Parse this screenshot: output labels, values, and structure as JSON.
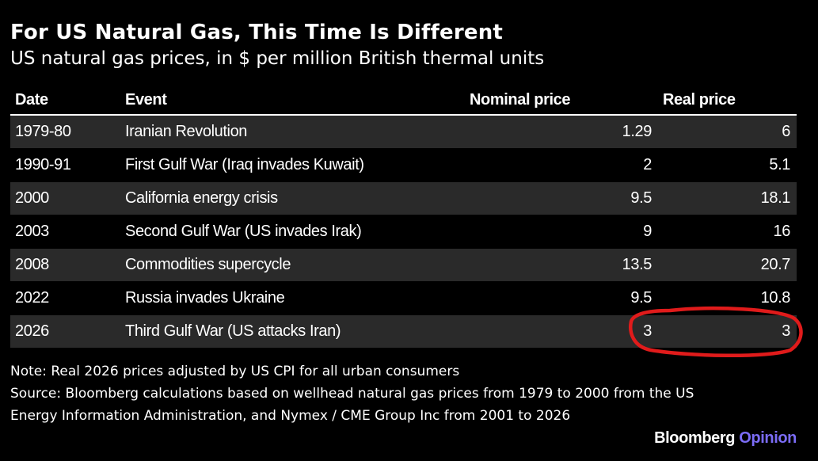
{
  "chart_data": {
    "type": "table",
    "title": "For US Natural Gas, This Time Is Different",
    "subtitle": "US natural gas prices, in $ per million British thermal units",
    "columns": [
      "Date",
      "Event",
      "Nominal price",
      "Real price"
    ],
    "rows": [
      {
        "date": "1979-80",
        "event": "Iranian Revolution",
        "nominal": "1.29",
        "real": "6"
      },
      {
        "date": "1990-91",
        "event": "First Gulf War (Iraq invades Kuwait)",
        "nominal": "2",
        "real": "5.1"
      },
      {
        "date": "2000",
        "event": "California energy crisis",
        "nominal": "9.5",
        "real": "18.1"
      },
      {
        "date": "2003",
        "event": "Second Gulf War (US invades Irak)",
        "nominal": "9",
        "real": "16"
      },
      {
        "date": "2008",
        "event": "Commodities supercycle",
        "nominal": "13.5",
        "real": "20.7"
      },
      {
        "date": "2022",
        "event": "Russia invades Ukraine",
        "nominal": "9.5",
        "real": "10.8"
      },
      {
        "date": "2026",
        "event": "Third Gulf War (US attacks Iran)",
        "nominal": "3",
        "real": "3"
      }
    ],
    "note": "Note: Real 2026 prices adjusted by US CPI for all urban consumers",
    "source_lines": [
      "Source: Bloomberg calculations based on wellhead natural gas prices from 1979 to 2000 from the US",
      "Energy Information Administration, and Nymex / CME Group Inc from 2001 to 2026"
    ]
  },
  "branding": {
    "name": "Bloomberg",
    "accent": "Opinion",
    "accent_color": "#7b6cf6"
  },
  "colors": {
    "background": "#000000",
    "row_shade": "#2a2a2a",
    "text": "#ffffff",
    "annotation": "#e01b1b"
  }
}
